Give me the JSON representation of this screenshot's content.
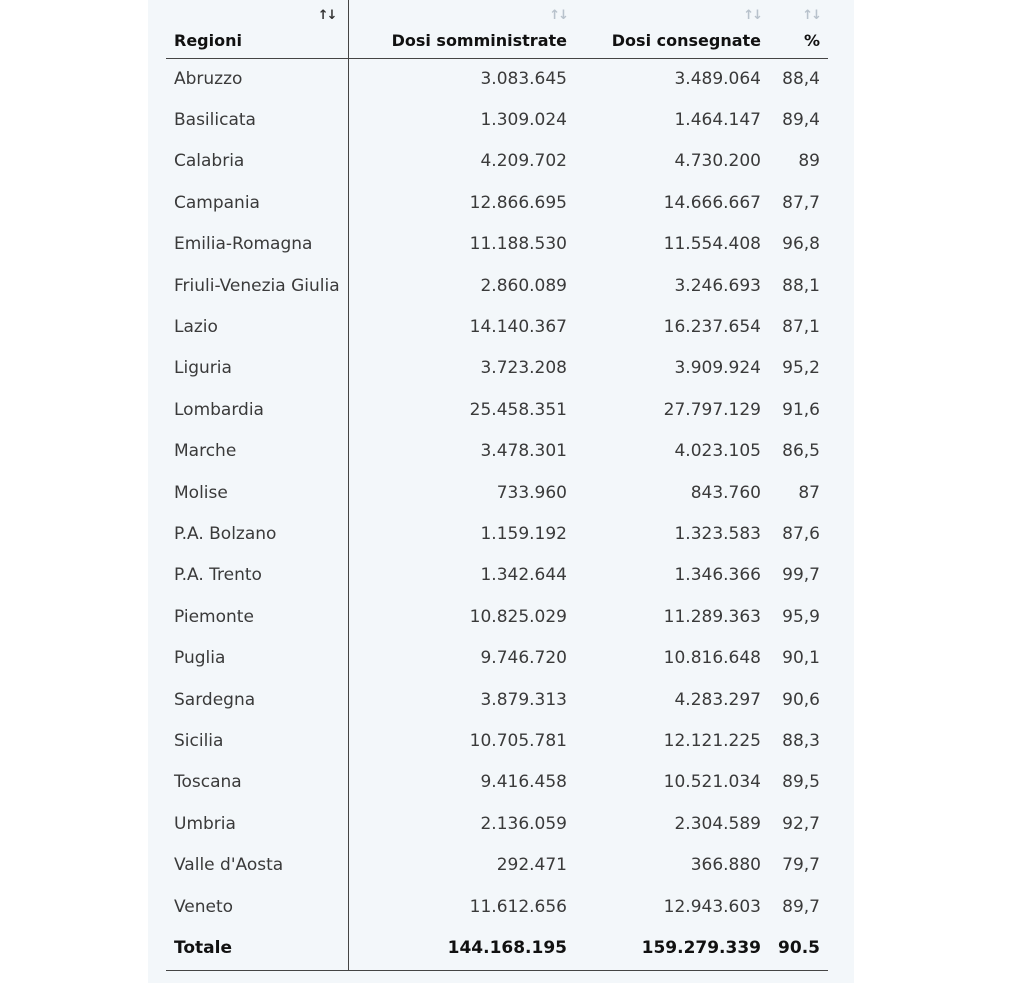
{
  "table": {
    "sort_icon": "↑↓",
    "headers": {
      "region": "Regioni",
      "administered": "Dosi somministrate",
      "delivered": "Dosi consegnate",
      "percent": "%"
    },
    "rows": [
      {
        "region": "Abruzzo",
        "administered": "3.083.645",
        "delivered": "3.489.064",
        "percent": "88,4"
      },
      {
        "region": "Basilicata",
        "administered": "1.309.024",
        "delivered": "1.464.147",
        "percent": "89,4"
      },
      {
        "region": "Calabria",
        "administered": "4.209.702",
        "delivered": "4.730.200",
        "percent": "89"
      },
      {
        "region": "Campania",
        "administered": "12.866.695",
        "delivered": "14.666.667",
        "percent": "87,7"
      },
      {
        "region": "Emilia-Romagna",
        "administered": "11.188.530",
        "delivered": "11.554.408",
        "percent": "96,8"
      },
      {
        "region": "Friuli-Venezia Giulia",
        "administered": "2.860.089",
        "delivered": "3.246.693",
        "percent": "88,1"
      },
      {
        "region": "Lazio",
        "administered": "14.140.367",
        "delivered": "16.237.654",
        "percent": "87,1"
      },
      {
        "region": "Liguria",
        "administered": "3.723.208",
        "delivered": "3.909.924",
        "percent": "95,2"
      },
      {
        "region": "Lombardia",
        "administered": "25.458.351",
        "delivered": "27.797.129",
        "percent": "91,6"
      },
      {
        "region": "Marche",
        "administered": "3.478.301",
        "delivered": "4.023.105",
        "percent": "86,5"
      },
      {
        "region": "Molise",
        "administered": "733.960",
        "delivered": "843.760",
        "percent": "87"
      },
      {
        "region": "P.A. Bolzano",
        "administered": "1.159.192",
        "delivered": "1.323.583",
        "percent": "87,6"
      },
      {
        "region": "P.A. Trento",
        "administered": "1.342.644",
        "delivered": "1.346.366",
        "percent": "99,7"
      },
      {
        "region": "Piemonte",
        "administered": "10.825.029",
        "delivered": "11.289.363",
        "percent": "95,9"
      },
      {
        "region": "Puglia",
        "administered": "9.746.720",
        "delivered": "10.816.648",
        "percent": "90,1"
      },
      {
        "region": "Sardegna",
        "administered": "3.879.313",
        "delivered": "4.283.297",
        "percent": "90,6"
      },
      {
        "region": "Sicilia",
        "administered": "10.705.781",
        "delivered": "12.121.225",
        "percent": "88,3"
      },
      {
        "region": "Toscana",
        "administered": "9.416.458",
        "delivered": "10.521.034",
        "percent": "89,5"
      },
      {
        "region": "Umbria",
        "administered": "2.136.059",
        "delivered": "2.304.589",
        "percent": "92,7"
      },
      {
        "region": "Valle d'Aosta",
        "administered": "292.471",
        "delivered": "366.880",
        "percent": "79,7"
      },
      {
        "region": "Veneto",
        "administered": "11.612.656",
        "delivered": "12.943.603",
        "percent": "89,7"
      }
    ],
    "total": {
      "region": "Totale",
      "administered": "144.168.195",
      "delivered": "159.279.339",
      "percent": "90.5"
    }
  }
}
